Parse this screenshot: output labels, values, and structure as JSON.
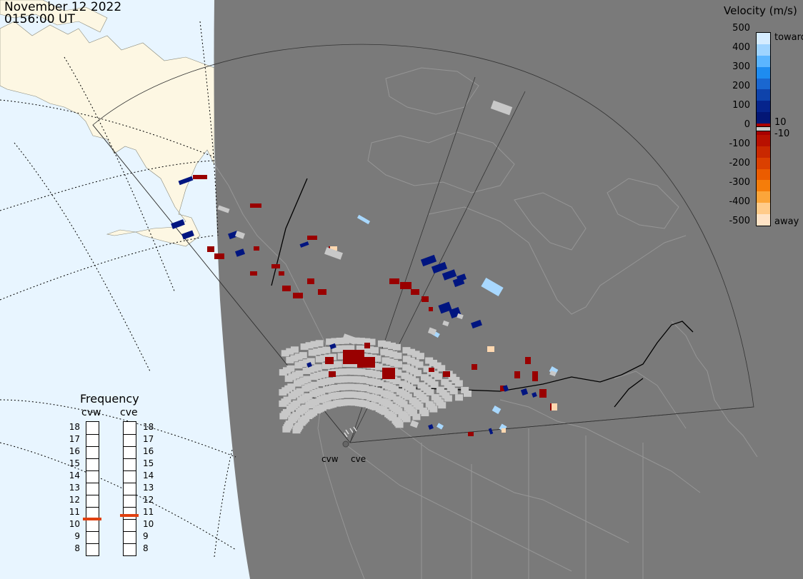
{
  "header": {
    "date": "November 12 2022",
    "time": "0156:00 UT"
  },
  "colorbar": {
    "title": "Velocity (m/s)",
    "ticks": [
      "500",
      "400",
      "300",
      "200",
      "100",
      "0",
      "-100",
      "-200",
      "-300",
      "-400",
      "-500"
    ],
    "near_zero_labels": [
      "10",
      "-10"
    ],
    "toward_label": "toward",
    "away_label": "away",
    "colors_top_to_bottom": [
      "#d5ecff",
      "#9fd4ff",
      "#5bb5ff",
      "#1e8cf0",
      "#1a67d0",
      "#0e43ab",
      "#06248c",
      "#031675",
      "#a80000",
      "#b81000",
      "#c92800",
      "#db4000",
      "#eb5c00",
      "#f57d0a",
      "#fba53a",
      "#ffcb8a",
      "#ffe3c6"
    ]
  },
  "radars": [
    "cvw",
    "cve"
  ],
  "frequency": {
    "title": "Frequency",
    "scale": [
      "18",
      "17",
      "16",
      "15",
      "14",
      "13",
      "12",
      "11",
      "10",
      "9",
      "8"
    ],
    "cvw_value_mhz": 10.5,
    "cve_value_mhz": 10.8,
    "marker_color": "#e04010"
  },
  "map_colors": {
    "ocean": "#e8f5ff",
    "land_outside_radar_view": "#fdf7e3",
    "night_shade": "#7a7a7a",
    "ground_scatter": "#c8c8c8"
  }
}
